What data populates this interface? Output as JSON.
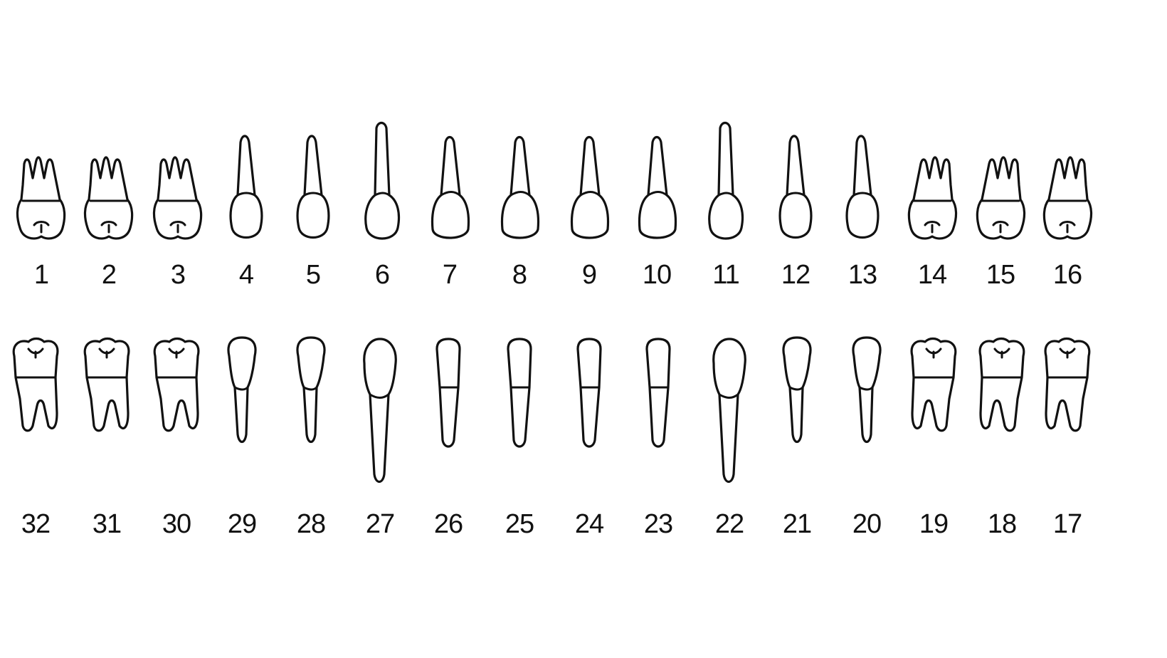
{
  "upper_row": [
    {
      "number": "1",
      "type": "molar"
    },
    {
      "number": "2",
      "type": "molar"
    },
    {
      "number": "3",
      "type": "molar"
    },
    {
      "number": "4",
      "type": "premolar"
    },
    {
      "number": "5",
      "type": "premolar"
    },
    {
      "number": "6",
      "type": "canine"
    },
    {
      "number": "7",
      "type": "incisor"
    },
    {
      "number": "8",
      "type": "incisor"
    },
    {
      "number": "9",
      "type": "incisor"
    },
    {
      "number": "10",
      "type": "incisor"
    },
    {
      "number": "11",
      "type": "canine"
    },
    {
      "number": "12",
      "type": "premolar"
    },
    {
      "number": "13",
      "type": "premolar"
    },
    {
      "number": "14",
      "type": "molar"
    },
    {
      "number": "15",
      "type": "molar"
    },
    {
      "number": "16",
      "type": "molar"
    }
  ],
  "lower_row": [
    {
      "number": "32",
      "type": "molar"
    },
    {
      "number": "31",
      "type": "molar"
    },
    {
      "number": "30",
      "type": "molar"
    },
    {
      "number": "29",
      "type": "premolar"
    },
    {
      "number": "28",
      "type": "premolar"
    },
    {
      "number": "27",
      "type": "canine"
    },
    {
      "number": "26",
      "type": "incisor"
    },
    {
      "number": "25",
      "type": "incisor"
    },
    {
      "number": "24",
      "type": "incisor"
    },
    {
      "number": "23",
      "type": "incisor"
    },
    {
      "number": "22",
      "type": "canine"
    },
    {
      "number": "21",
      "type": "premolar"
    },
    {
      "number": "20",
      "type": "premolar"
    },
    {
      "number": "19",
      "type": "molar"
    },
    {
      "number": "18",
      "type": "molar"
    },
    {
      "number": "17",
      "type": "molar"
    }
  ],
  "colors": {
    "background": "#ffffff",
    "outline": "#111111"
  }
}
